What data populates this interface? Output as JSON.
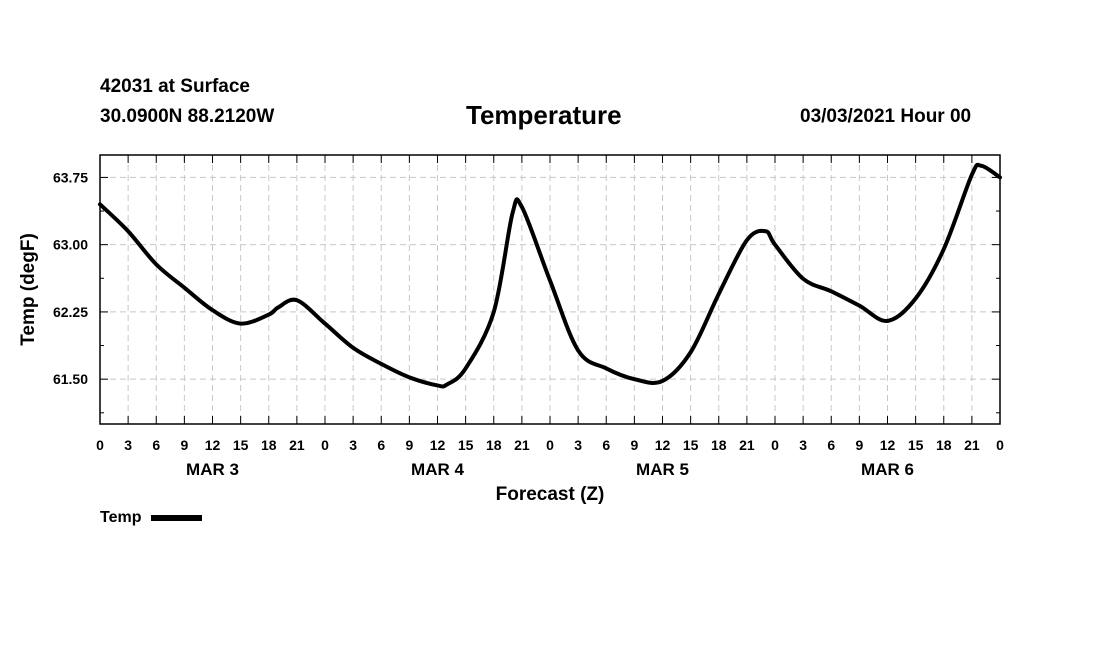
{
  "header": {
    "station": "42031 at Surface",
    "location": "30.0900N 88.2120W",
    "title": "Temperature",
    "datetime": "03/03/2021 Hour 00"
  },
  "legend": {
    "label": "Temp"
  },
  "chart_data": {
    "type": "line",
    "title": "Temperature",
    "xlabel": "Forecast (Z)",
    "ylabel": "Temp (degF)",
    "xlim": [
      0,
      96
    ],
    "ylim": [
      61.0,
      64.0
    ],
    "y_ticks": [
      61.5,
      62.25,
      63.0,
      63.75
    ],
    "y_tick_labels": [
      "61.50",
      "62.25",
      "63.00",
      "63.75"
    ],
    "x_ticks": [
      0,
      3,
      6,
      9,
      12,
      15,
      18,
      21,
      24,
      27,
      30,
      33,
      36,
      39,
      42,
      45,
      48,
      51,
      54,
      57,
      60,
      63,
      66,
      69,
      72,
      75,
      78,
      81,
      84,
      87,
      90,
      93,
      96
    ],
    "x_tick_labels": [
      "0",
      "3",
      "6",
      "9",
      "12",
      "15",
      "18",
      "21",
      "0",
      "3",
      "6",
      "9",
      "12",
      "15",
      "18",
      "21",
      "0",
      "3",
      "6",
      "9",
      "12",
      "15",
      "18",
      "21",
      "0",
      "3",
      "6",
      "9",
      "12",
      "15",
      "18",
      "21",
      "0"
    ],
    "day_labels": [
      {
        "label": "MAR 3",
        "x": 12
      },
      {
        "label": "MAR 4",
        "x": 36
      },
      {
        "label": "MAR 5",
        "x": 60
      },
      {
        "label": "MAR 6",
        "x": 84
      }
    ],
    "grid": true,
    "legend_position": "bottom-left",
    "series": [
      {
        "name": "Temp",
        "color": "#000000",
        "x": [
          0,
          3,
          6,
          9,
          12,
          15,
          18,
          19,
          21,
          24,
          27,
          30,
          33,
          36,
          37,
          39,
          42,
          44,
          45,
          48,
          51,
          54,
          57,
          60,
          63,
          66,
          69,
          71,
          72,
          75,
          78,
          81,
          84,
          87,
          90,
          93,
          94,
          96
        ],
        "values": [
          63.45,
          63.15,
          62.78,
          62.52,
          62.27,
          62.12,
          62.22,
          62.3,
          62.38,
          62.12,
          61.85,
          61.67,
          61.52,
          61.43,
          61.44,
          61.62,
          62.25,
          63.35,
          63.42,
          62.6,
          61.82,
          61.62,
          61.5,
          61.48,
          61.8,
          62.45,
          63.05,
          63.15,
          63.0,
          62.62,
          62.48,
          62.32,
          62.15,
          62.4,
          62.95,
          63.78,
          63.88,
          63.75
        ]
      }
    ]
  }
}
